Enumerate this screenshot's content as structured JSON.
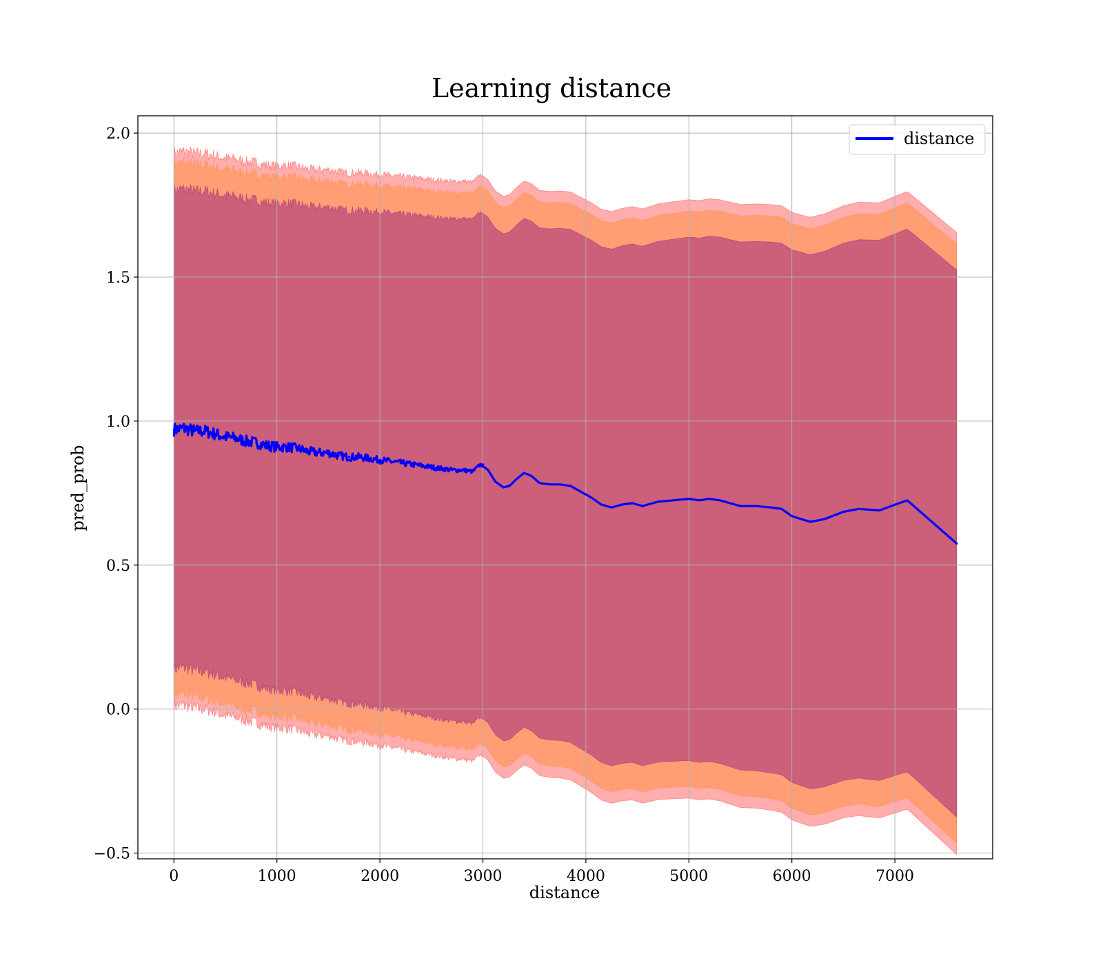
{
  "chart_data": {
    "type": "line",
    "title": "Learning distance",
    "xlabel": "distance",
    "ylabel": "pred_prob",
    "xlim": [
      -350,
      7950
    ],
    "ylim": [
      -0.52,
      2.06
    ],
    "xticks": [
      0,
      1000,
      2000,
      3000,
      4000,
      5000,
      6000,
      7000
    ],
    "yticks": [
      -0.5,
      0.0,
      0.5,
      1.0,
      1.5,
      2.0
    ],
    "ytick_labels": [
      "−0.5",
      "0.0",
      "0.5",
      "1.0",
      "1.5",
      "2.0"
    ],
    "grid": true,
    "legend": {
      "position": "top-right",
      "entries": [
        "distance"
      ]
    },
    "colors": {
      "line": "#0000ff",
      "band_outer": "#ff0000",
      "band_mid": "#ff8000",
      "band_inner": "#800080",
      "grid": "#b0b0b0"
    },
    "series": [
      {
        "name": "distance",
        "x": [
          0,
          100,
          200,
          300,
          400,
          500,
          600,
          700,
          800,
          900,
          1000,
          1100,
          1200,
          1300,
          1400,
          1500,
          1600,
          1700,
          1800,
          1900,
          2000,
          2100,
          2200,
          2300,
          2400,
          2500,
          2600,
          2700,
          2800,
          2900,
          2980,
          3050,
          3120,
          3200,
          3260,
          3330,
          3400,
          3470,
          3550,
          3650,
          3750,
          3850,
          3950,
          4050,
          4150,
          4250,
          4350,
          4450,
          4550,
          4700,
          4850,
          5000,
          5100,
          5200,
          5300,
          5400,
          5500,
          5650,
          5800,
          5900,
          6000,
          6180,
          6320,
          6500,
          6650,
          6850,
          7120,
          7600
        ],
        "y": [
          0.97,
          0.975,
          0.965,
          0.965,
          0.955,
          0.945,
          0.94,
          0.93,
          0.925,
          0.915,
          0.91,
          0.91,
          0.905,
          0.895,
          0.89,
          0.89,
          0.88,
          0.875,
          0.875,
          0.87,
          0.865,
          0.86,
          0.855,
          0.85,
          0.845,
          0.84,
          0.835,
          0.83,
          0.83,
          0.825,
          0.85,
          0.83,
          0.79,
          0.77,
          0.775,
          0.8,
          0.82,
          0.81,
          0.785,
          0.78,
          0.78,
          0.775,
          0.755,
          0.735,
          0.71,
          0.7,
          0.71,
          0.715,
          0.705,
          0.72,
          0.725,
          0.73,
          0.725,
          0.73,
          0.725,
          0.715,
          0.705,
          0.705,
          0.7,
          0.695,
          0.67,
          0.65,
          0.66,
          0.685,
          0.695,
          0.69,
          0.725,
          0.575
        ]
      }
    ]
  }
}
